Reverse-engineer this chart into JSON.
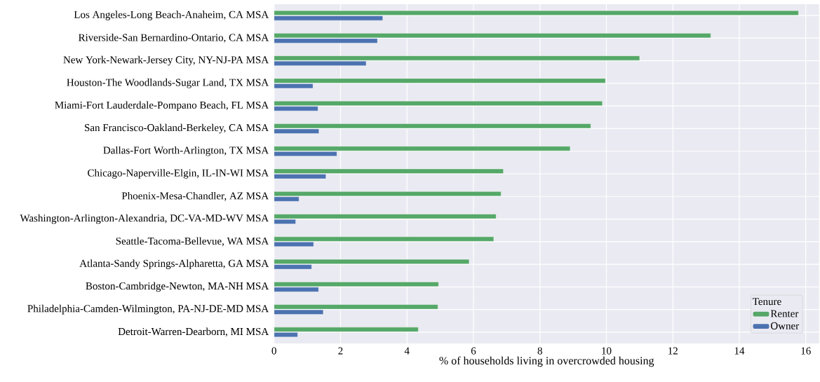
{
  "chart_data": {
    "type": "bar",
    "orientation": "horizontal",
    "xlabel": "% of households living in overcrowded housing",
    "legend_title": "Tenure",
    "categories": [
      "Los Angeles-Long Beach-Anaheim, CA MSA",
      "Riverside-San Bernardino-Ontario, CA MSA",
      "New York-Newark-Jersey City, NY-NJ-PA MSA",
      "Houston-The Woodlands-Sugar Land, TX MSA",
      "Miami-Fort Lauderdale-Pompano Beach, FL MSA",
      "San Francisco-Oakland-Berkeley, CA MSA",
      "Dallas-Fort Worth-Arlington, TX MSA",
      "Chicago-Naperville-Elgin, IL-IN-WI MSA",
      "Phoenix-Mesa-Chandler, AZ MSA",
      "Washington-Arlington-Alexandria, DC-VA-MD-WV MSA",
      "Seattle-Tacoma-Bellevue, WA MSA",
      "Atlanta-Sandy Springs-Alpharetta, GA MSA",
      "Boston-Cambridge-Newton, MA-NH MSA",
      "Philadelphia-Camden-Wilmington, PA-NJ-DE-MD MSA",
      "Detroit-Warren-Dearborn, MI MSA"
    ],
    "series": [
      {
        "name": "Renter",
        "color": "#55a868",
        "values": [
          15.78,
          13.14,
          11.0,
          9.97,
          9.88,
          9.53,
          8.91,
          6.9,
          6.83,
          6.68,
          6.61,
          5.87,
          4.95,
          4.93,
          4.34
        ]
      },
      {
        "name": "Owner",
        "color": "#4c72b0",
        "values": [
          3.27,
          3.11,
          2.77,
          1.17,
          1.32,
          1.35,
          1.89,
          1.56,
          0.75,
          0.65,
          1.19,
          1.13,
          1.34,
          1.48,
          0.71
        ]
      }
    ],
    "xlim": [
      0,
      16.4
    ],
    "xticks": [
      0,
      2,
      4,
      6,
      8,
      10,
      12,
      14,
      16
    ],
    "grid": true,
    "legend": "bottom right"
  }
}
